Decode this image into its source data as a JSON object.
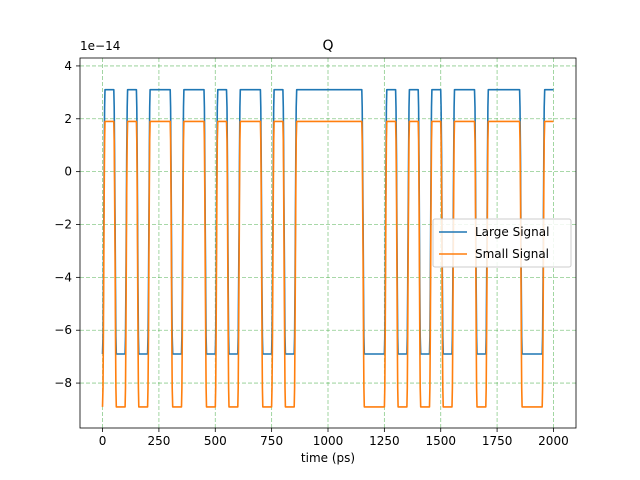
{
  "chart_data": {
    "type": "line",
    "title": "Q",
    "xlabel": "time (ps)",
    "ylabel": "",
    "y_multiplier_label": "1e−14",
    "xlim": [
      -100,
      2100
    ],
    "ylim": [
      -9.7,
      4.3
    ],
    "xticks": [
      0,
      250,
      500,
      750,
      1000,
      1250,
      1500,
      1750,
      2000
    ],
    "yticks": [
      -8,
      -6,
      -4,
      -2,
      0,
      2,
      4
    ],
    "ytick_labels": [
      "−8",
      "−6",
      "−4",
      "−2",
      "0",
      "2",
      "4"
    ],
    "grid": true,
    "legend_position": "center-right",
    "bits": [
      1,
      0,
      1,
      0,
      1,
      1,
      0,
      1,
      1,
      0,
      1,
      0,
      1,
      1,
      0,
      1,
      0,
      1,
      1,
      1,
      1,
      1,
      1,
      0,
      0,
      1,
      0,
      1,
      0,
      1,
      0,
      1,
      1,
      0,
      1,
      1,
      1,
      0,
      0,
      1
    ],
    "series": [
      {
        "name": "Large Signal",
        "color": "#1f77b4",
        "levels": [
          {
            "bit": 1,
            "value": 3.1
          },
          {
            "bit": 0,
            "value": -6.9
          }
        ],
        "x": [
          0,
          2000
        ]
      },
      {
        "name": "Small Signal",
        "color": "#ff7f0e",
        "levels": [
          {
            "bit": 1,
            "value": 1.9
          },
          {
            "bit": 0,
            "value": -8.9
          }
        ],
        "x": [
          0,
          2000
        ]
      }
    ]
  }
}
